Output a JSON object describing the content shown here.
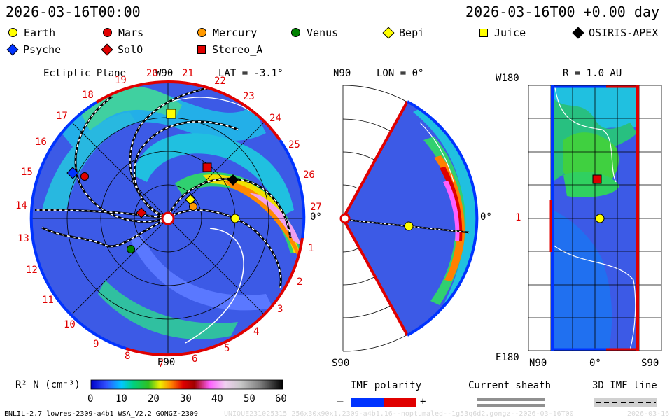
{
  "header": {
    "timestamp_left": "2026-03-16T00:00",
    "timestamp_right": "2026-03-16T00 +0.00 day"
  },
  "legend": {
    "items": [
      {
        "name": "Earth",
        "marker": "circle",
        "color": "#ffff00"
      },
      {
        "name": "Mars",
        "marker": "circle",
        "color": "#e00000"
      },
      {
        "name": "Mercury",
        "marker": "circle",
        "color": "#ff9900"
      },
      {
        "name": "Venus",
        "marker": "circle",
        "color": "#008000"
      },
      {
        "name": "Bepi",
        "marker": "diamond",
        "color": "#ffff00"
      },
      {
        "name": "Juice",
        "marker": "square",
        "color": "#ffff00"
      },
      {
        "name": "OSIRIS-APEX",
        "marker": "diamond",
        "color": "#000000"
      },
      {
        "name": "Psyche",
        "marker": "diamond",
        "color": "#0033ff"
      },
      {
        "name": "SolO",
        "marker": "diamond",
        "color": "#e00000"
      },
      {
        "name": "Stereo_A",
        "marker": "square",
        "color": "#e00000"
      }
    ]
  },
  "panels": {
    "ecliptic": {
      "title": "Ecliptic Plane",
      "top_label": "W90",
      "lat": "LAT = -3.1°",
      "bottom_label": "E90",
      "right_label": "0°",
      "carrington": [
        "19",
        "20",
        "21",
        "22",
        "23",
        "24",
        "25",
        "26",
        "27",
        "1",
        "2",
        "3",
        "4",
        "5",
        "6",
        "7",
        "8",
        "9",
        "10",
        "11",
        "12",
        "13",
        "14",
        "15",
        "16",
        "17",
        "18"
      ]
    },
    "meridional": {
      "top_left": "N90",
      "lon": "LON = 0°",
      "right_label": "0°",
      "bottom_left": "S90"
    },
    "latlon": {
      "top_left": "W180",
      "radius": "R = 1.0 AU",
      "left_mid": "1",
      "bottom_left": "E180",
      "bottom_mid": "0°",
      "bottom_far_left": "N90",
      "bottom_right": "S90"
    }
  },
  "colorbar": {
    "label": "R² N (cm⁻³)",
    "ticks": [
      "0",
      "10",
      "20",
      "30",
      "40",
      "50",
      "60"
    ]
  },
  "keys": {
    "imf_polarity": "IMF polarity",
    "minus": "–",
    "plus": "+",
    "current_sheath": "Current sheath",
    "imf_line": "3D IMF line"
  },
  "footer": {
    "model": "ENLIL-2.7 lowres-2309-a4b1 WSA_V2.2 GONGZ-2309",
    "run_id": "UNIQUE231025315 256x30x90x1.2309-a4b1.16--noptumaled--1g53q6d2.gongz--2026-03-16T00",
    "date_short": "2026-03-16"
  },
  "chart_data": {
    "type": "heatmap",
    "quantity": "R^2 N (cm^-3)",
    "colorbar_range": [
      0,
      60
    ],
    "views": [
      "Ecliptic Plane",
      "Meridional plane LON = 0°",
      "Lat-Lon map R = 1.0 AU"
    ],
    "ecliptic_positions": [
      {
        "body": "Earth",
        "lon_deg": 0
      },
      {
        "body": "Juice",
        "lon_deg": 85
      },
      {
        "body": "Stereo_A",
        "lon_deg": 38
      },
      {
        "body": "OSIRIS-APEX",
        "lon_deg": 22
      },
      {
        "body": "Psyche",
        "lon_deg": 163
      },
      {
        "body": "Mars",
        "lon_deg": 157
      }
    ]
  }
}
